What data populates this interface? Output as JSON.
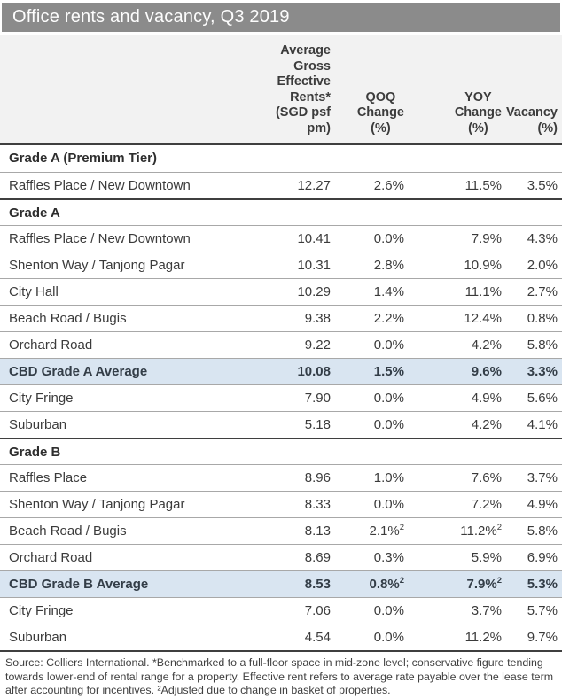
{
  "title": "Office rents and vacancy, Q3 2019",
  "columns": {
    "rents": "Average Gross\nEffective\nRents*\n(SGD psf pm)",
    "qoq": "QOQ\nChange\n(%)",
    "yoy": "YOY\nChange\n(%)",
    "vacancy": "Vacancy\n(%)"
  },
  "rows": [
    {
      "type": "section",
      "label": "Grade A (Premium Tier)"
    },
    {
      "type": "data",
      "label": "Raffles Place / New Downtown",
      "rent": "12.27",
      "qoq": "2.6%",
      "yoy": "11.5%",
      "vacancy": "3.5%"
    },
    {
      "type": "section",
      "label": "Grade A"
    },
    {
      "type": "data",
      "label": "Raffles Place / New Downtown",
      "rent": "10.41",
      "qoq": "0.0%",
      "yoy": "7.9%",
      "vacancy": "4.3%"
    },
    {
      "type": "data",
      "label": "Shenton Way / Tanjong Pagar",
      "rent": "10.31",
      "qoq": "2.8%",
      "yoy": "10.9%",
      "vacancy": "2.0%"
    },
    {
      "type": "data",
      "label": "City Hall",
      "rent": "10.29",
      "qoq": "1.4%",
      "yoy": "11.1%",
      "vacancy": "2.7%"
    },
    {
      "type": "data",
      "label": "Beach Road / Bugis",
      "rent": "9.38",
      "qoq": "2.2%",
      "yoy": "12.4%",
      "vacancy": "0.8%"
    },
    {
      "type": "data",
      "label": "Orchard Road",
      "rent": "9.22",
      "qoq": "0.0%",
      "yoy": "4.2%",
      "vacancy": "5.8%"
    },
    {
      "type": "highlight",
      "label": "CBD Grade A Average",
      "rent": "10.08",
      "qoq": "1.5%",
      "yoy": "9.6%",
      "vacancy": "3.3%"
    },
    {
      "type": "data",
      "label": "City Fringe",
      "rent": "7.90",
      "qoq": "0.0%",
      "yoy": "4.9%",
      "vacancy": "5.6%"
    },
    {
      "type": "data",
      "label": "Suburban",
      "rent": "5.18",
      "qoq": "0.0%",
      "yoy": "4.2%",
      "vacancy": "4.1%"
    },
    {
      "type": "section",
      "label": "Grade B"
    },
    {
      "type": "data",
      "label": "Raffles Place",
      "rent": "8.96",
      "qoq": "1.0%",
      "yoy": "7.6%",
      "vacancy": "3.7%"
    },
    {
      "type": "data",
      "label": "Shenton Way / Tanjong Pagar",
      "rent": "8.33",
      "qoq": "0.0%",
      "yoy": "7.2%",
      "vacancy": "4.9%"
    },
    {
      "type": "data",
      "label": "Beach Road / Bugis",
      "rent": "8.13",
      "qoq": "2.1%",
      "qoq_sup": "2",
      "yoy": "11.2%",
      "yoy_sup": "2",
      "vacancy": "5.8%"
    },
    {
      "type": "data",
      "label": "Orchard Road",
      "rent": "8.69",
      "qoq": "0.3%",
      "yoy": "5.9%",
      "vacancy": "6.9%"
    },
    {
      "type": "highlight",
      "label": "CBD Grade B Average",
      "rent": "8.53",
      "qoq": "0.8%",
      "qoq_sup": "2",
      "yoy": "7.9%",
      "yoy_sup": "2",
      "vacancy": "5.3%"
    },
    {
      "type": "data",
      "label": "City Fringe",
      "rent": "7.06",
      "qoq": "0.0%",
      "yoy": "3.7%",
      "vacancy": "5.7%"
    },
    {
      "type": "data",
      "label": "Suburban",
      "rent": "4.54",
      "qoq": "0.0%",
      "yoy": "11.2%",
      "vacancy": "9.7%"
    }
  ],
  "footnote": "Source: Colliers International. *Benchmarked to a full-floor space in mid-zone level; conservative figure tending towards lower-end of rental range for a property. Effective rent refers to average rate payable over the lease term after accounting for incentives. ²Adjusted due to change in basket of properties.",
  "colors": {
    "titlebar": "#8b8b8b",
    "headerbg": "#f2f2f2",
    "highlight": "#d9e5f1",
    "borderdark": "#3f3f3f",
    "borderlight": "#a8a8a8",
    "text": "#3b3b3b"
  }
}
